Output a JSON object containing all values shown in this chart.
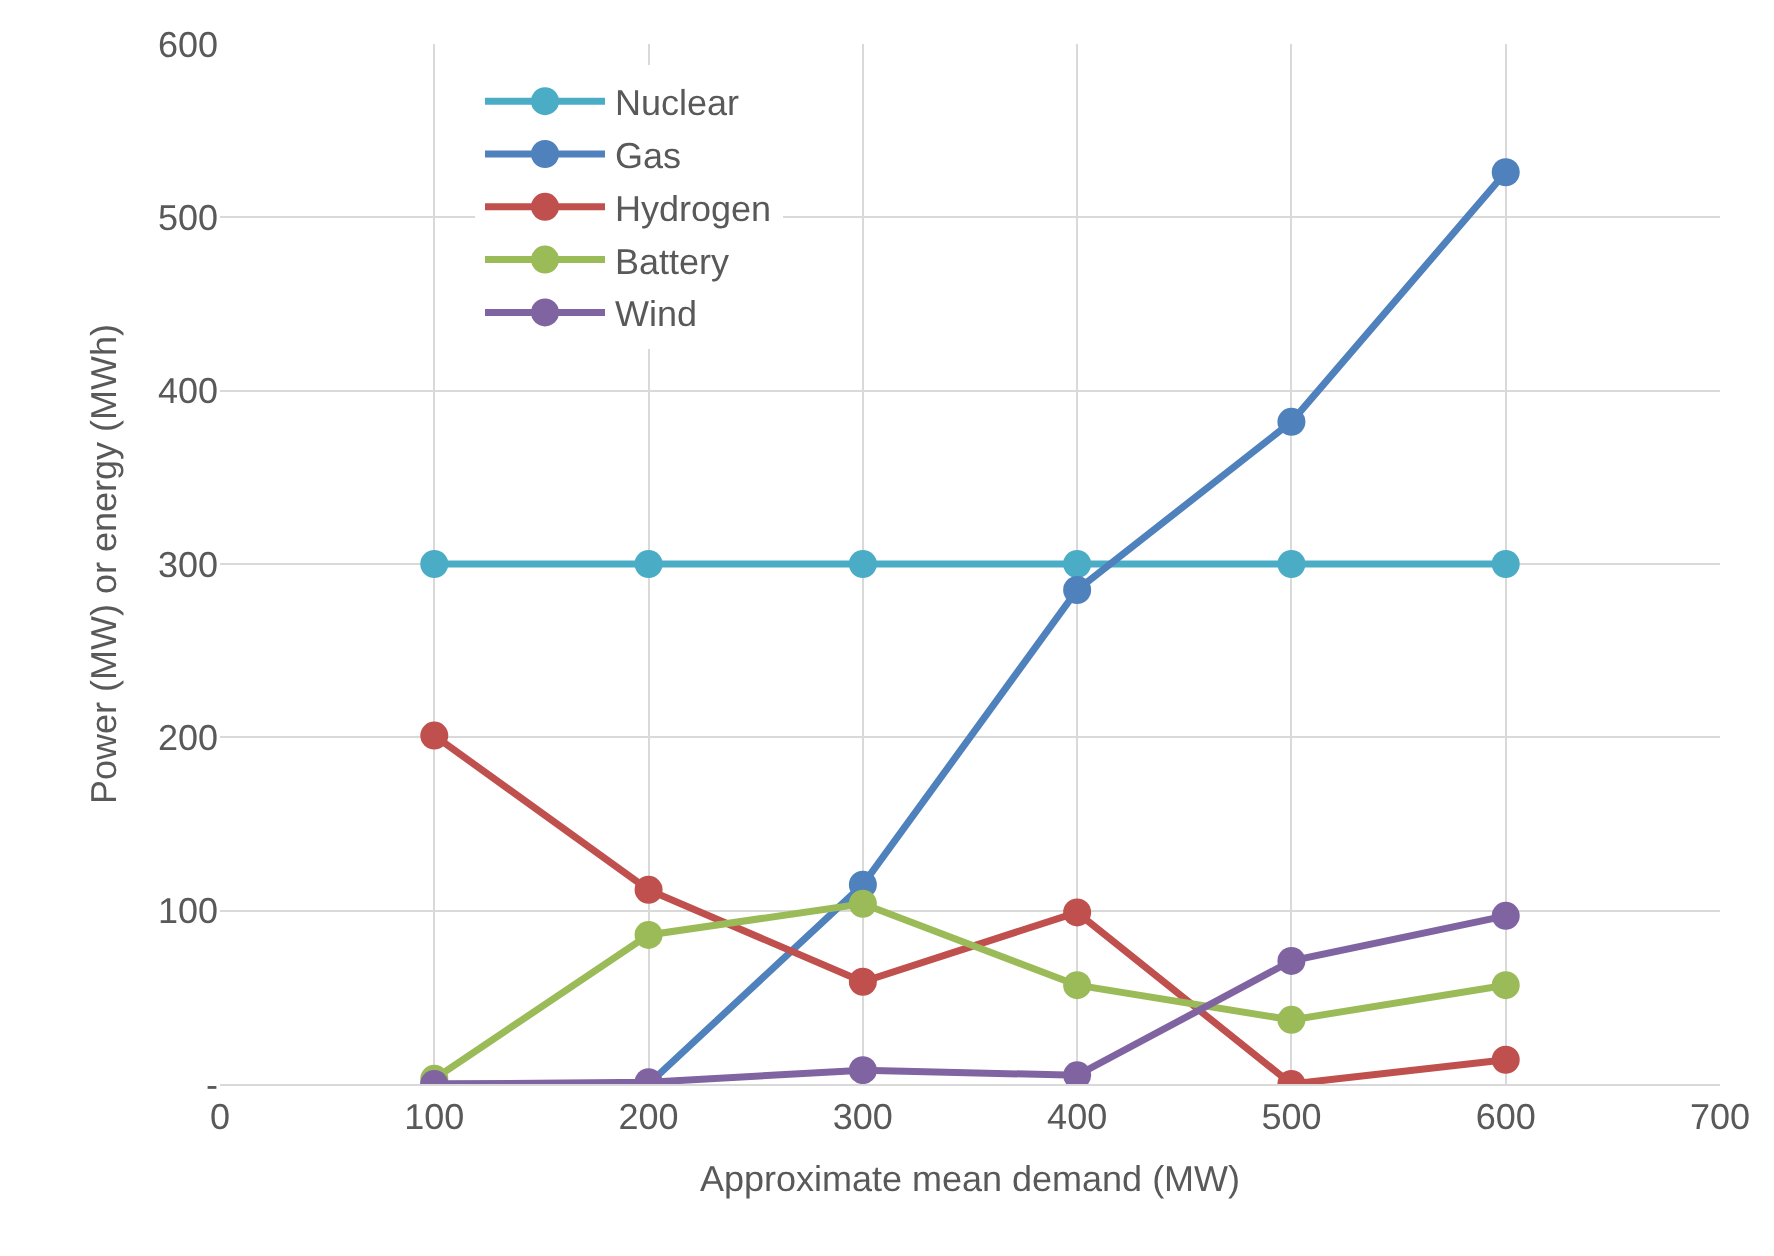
{
  "chart_data": {
    "type": "line",
    "xlabel": "Approximate mean demand (MW)",
    "ylabel": "Power (MW) or energy (MWh)",
    "x": [
      100,
      200,
      300,
      400,
      500,
      600
    ],
    "series": [
      {
        "name": "Nuclear",
        "color": "#4bacc6",
        "values": [
          300,
          300,
          300,
          300,
          300,
          300
        ]
      },
      {
        "name": "Gas",
        "color": "#4f81bd",
        "values": [
          0,
          0,
          115,
          285,
          382,
          526
        ]
      },
      {
        "name": "Hydrogen",
        "color": "#c0504d",
        "values": [
          201,
          112,
          59,
          99,
          0,
          14
        ]
      },
      {
        "name": "Battery",
        "color": "#9bbb59",
        "values": [
          3,
          86,
          104,
          57,
          37,
          57
        ]
      },
      {
        "name": "Wind",
        "color": "#8064a2",
        "values": [
          0,
          1,
          8,
          5,
          71,
          97
        ]
      }
    ],
    "xlim": [
      0,
      700
    ],
    "xticks": [
      0,
      100,
      200,
      300,
      400,
      500,
      600,
      700
    ],
    "ylim": [
      0,
      600
    ],
    "yticks": [
      {
        "value": 0,
        "label": "-"
      },
      100,
      200,
      300,
      400,
      500,
      600
    ],
    "grid": true,
    "legend": "top left",
    "marker": "circle",
    "line_style": "solid"
  }
}
